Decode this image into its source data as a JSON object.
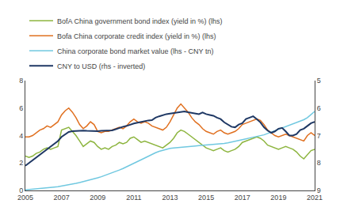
{
  "chart_data": {
    "type": "line",
    "x": [
      2005.0,
      2005.2,
      2005.4,
      2005.6,
      2005.8,
      2006.0,
      2006.2,
      2006.4,
      2006.6,
      2006.8,
      2007.0,
      2007.2,
      2007.4,
      2007.6,
      2007.8,
      2008.0,
      2008.2,
      2008.4,
      2008.6,
      2008.8,
      2009.0,
      2009.2,
      2009.4,
      2009.6,
      2009.8,
      2010.0,
      2010.2,
      2010.4,
      2010.6,
      2010.8,
      2011.0,
      2011.2,
      2011.4,
      2011.6,
      2011.8,
      2012.0,
      2012.2,
      2012.4,
      2012.6,
      2012.8,
      2013.0,
      2013.2,
      2013.4,
      2013.6,
      2013.8,
      2014.0,
      2014.2,
      2014.4,
      2014.6,
      2014.8,
      2015.0,
      2015.2,
      2015.4,
      2015.6,
      2015.8,
      2016.0,
      2016.2,
      2016.4,
      2016.6,
      2016.8,
      2017.0,
      2017.2,
      2017.4,
      2017.6,
      2017.8,
      2018.0,
      2018.2,
      2018.4,
      2018.6,
      2018.8,
      2019.0,
      2019.2,
      2019.4,
      2019.6,
      2019.8,
      2020.0,
      2020.2,
      2020.4,
      2020.6,
      2020.8,
      2021.0
    ],
    "series": [
      {
        "name": "BofA China government bond index (yield in %) (lhs)",
        "color": "#8db53f",
        "values": [
          2.5,
          2.4,
          2.5,
          2.7,
          2.8,
          3.0,
          3.1,
          3.0,
          3.1,
          3.2,
          4.4,
          4.5,
          4.6,
          4.3,
          4.0,
          3.6,
          3.2,
          3.4,
          3.6,
          3.5,
          3.2,
          3.0,
          3.1,
          3.0,
          3.2,
          3.3,
          3.5,
          3.4,
          3.5,
          3.8,
          3.9,
          3.7,
          3.5,
          3.6,
          3.5,
          3.4,
          3.3,
          3.2,
          3.1,
          3.3,
          3.5,
          3.8,
          4.2,
          4.4,
          4.3,
          4.1,
          3.9,
          3.7,
          3.5,
          3.3,
          3.1,
          3.0,
          2.9,
          3.0,
          3.1,
          2.9,
          2.8,
          2.9,
          3.0,
          3.2,
          3.5,
          3.6,
          3.7,
          3.8,
          3.9,
          3.8,
          3.6,
          3.3,
          3.2,
          3.1,
          3.0,
          3.1,
          3.2,
          3.1,
          3.0,
          2.8,
          2.5,
          2.3,
          2.6,
          2.9,
          3.0
        ]
      },
      {
        "name": "Bofa China corporate credit index (yield in %) (lhs)",
        "color": "#e07020",
        "values": [
          3.9,
          3.9,
          4.0,
          4.2,
          4.4,
          4.5,
          4.7,
          4.6,
          4.8,
          5.0,
          5.5,
          5.8,
          6.0,
          5.7,
          5.3,
          4.8,
          4.5,
          4.7,
          5.0,
          4.8,
          4.3,
          4.2,
          4.3,
          4.3,
          4.4,
          4.5,
          4.6,
          4.5,
          4.7,
          5.0,
          5.2,
          5.0,
          4.9,
          5.0,
          4.9,
          4.7,
          4.6,
          4.5,
          4.4,
          4.6,
          5.0,
          5.5,
          6.0,
          6.3,
          6.0,
          5.7,
          5.3,
          5.0,
          4.8,
          4.5,
          4.3,
          4.2,
          4.1,
          4.3,
          4.4,
          4.2,
          4.1,
          4.2,
          4.3,
          4.5,
          4.8,
          4.9,
          5.0,
          5.1,
          5.2,
          5.1,
          4.8,
          4.4,
          4.2,
          4.0,
          3.9,
          4.0,
          4.1,
          4.0,
          3.9,
          3.8,
          3.7,
          3.6,
          4.0,
          4.2,
          4.0
        ]
      },
      {
        "name": "China corporate bond market value (lhs - CNY tn)",
        "color": "#70c8e0",
        "values": [
          0.05,
          0.07,
          0.09,
          0.11,
          0.13,
          0.16,
          0.19,
          0.22,
          0.25,
          0.28,
          0.32,
          0.37,
          0.42,
          0.47,
          0.52,
          0.58,
          0.64,
          0.7,
          0.77,
          0.84,
          0.92,
          1.0,
          1.09,
          1.18,
          1.28,
          1.38,
          1.49,
          1.6,
          1.72,
          1.84,
          1.97,
          2.1,
          2.23,
          2.36,
          2.49,
          2.63,
          2.75,
          2.85,
          2.93,
          3.0,
          3.06,
          3.1,
          3.13,
          3.16,
          3.18,
          3.2,
          3.22,
          3.24,
          3.26,
          3.28,
          3.3,
          3.33,
          3.36,
          3.38,
          3.4,
          3.43,
          3.47,
          3.52,
          3.57,
          3.63,
          3.7,
          3.76,
          3.82,
          3.87,
          3.92,
          3.97,
          4.05,
          4.15,
          4.25,
          4.35,
          4.45,
          4.55,
          4.65,
          4.75,
          4.85,
          4.95,
          5.05,
          5.15,
          5.3,
          5.55,
          5.75
        ]
      },
      {
        "name": "CNY to USD (rhs - inverted)",
        "color": "#1f3864",
        "axis": "y2",
        "values": [
          8.1,
          8.0,
          7.9,
          7.8,
          7.7,
          7.6,
          7.5,
          7.4,
          7.3,
          7.2,
          7.05,
          6.95,
          6.87,
          6.84,
          6.83,
          6.82,
          6.82,
          6.83,
          6.84,
          6.83,
          6.84,
          6.83,
          6.83,
          6.82,
          6.81,
          6.77,
          6.72,
          6.68,
          6.65,
          6.6,
          6.56,
          6.53,
          6.5,
          6.48,
          6.45,
          6.44,
          6.35,
          6.3,
          6.25,
          6.22,
          6.2,
          6.18,
          6.15,
          6.13,
          6.12,
          6.15,
          6.18,
          6.2,
          6.22,
          6.16,
          6.22,
          6.25,
          6.28,
          6.35,
          6.4,
          6.52,
          6.6,
          6.68,
          6.7,
          6.6,
          6.55,
          6.4,
          6.35,
          6.3,
          6.4,
          6.52,
          6.7,
          6.82,
          6.9,
          6.85,
          6.75,
          6.72,
          6.85,
          7.0,
          7.0,
          6.95,
          6.8,
          6.75,
          6.65,
          6.55,
          6.5
        ]
      }
    ],
    "xlim": [
      2005,
      2021
    ],
    "xticks": [
      2005,
      2007,
      2009,
      2011,
      2013,
      2015,
      2017,
      2019,
      2021
    ],
    "ylim": [
      0,
      8
    ],
    "yticks": [
      0,
      2,
      4,
      6,
      8
    ],
    "y2lim": [
      9,
      5
    ],
    "y2ticks": [
      5,
      6,
      7,
      8,
      9
    ],
    "grid": false,
    "legend": "top"
  }
}
